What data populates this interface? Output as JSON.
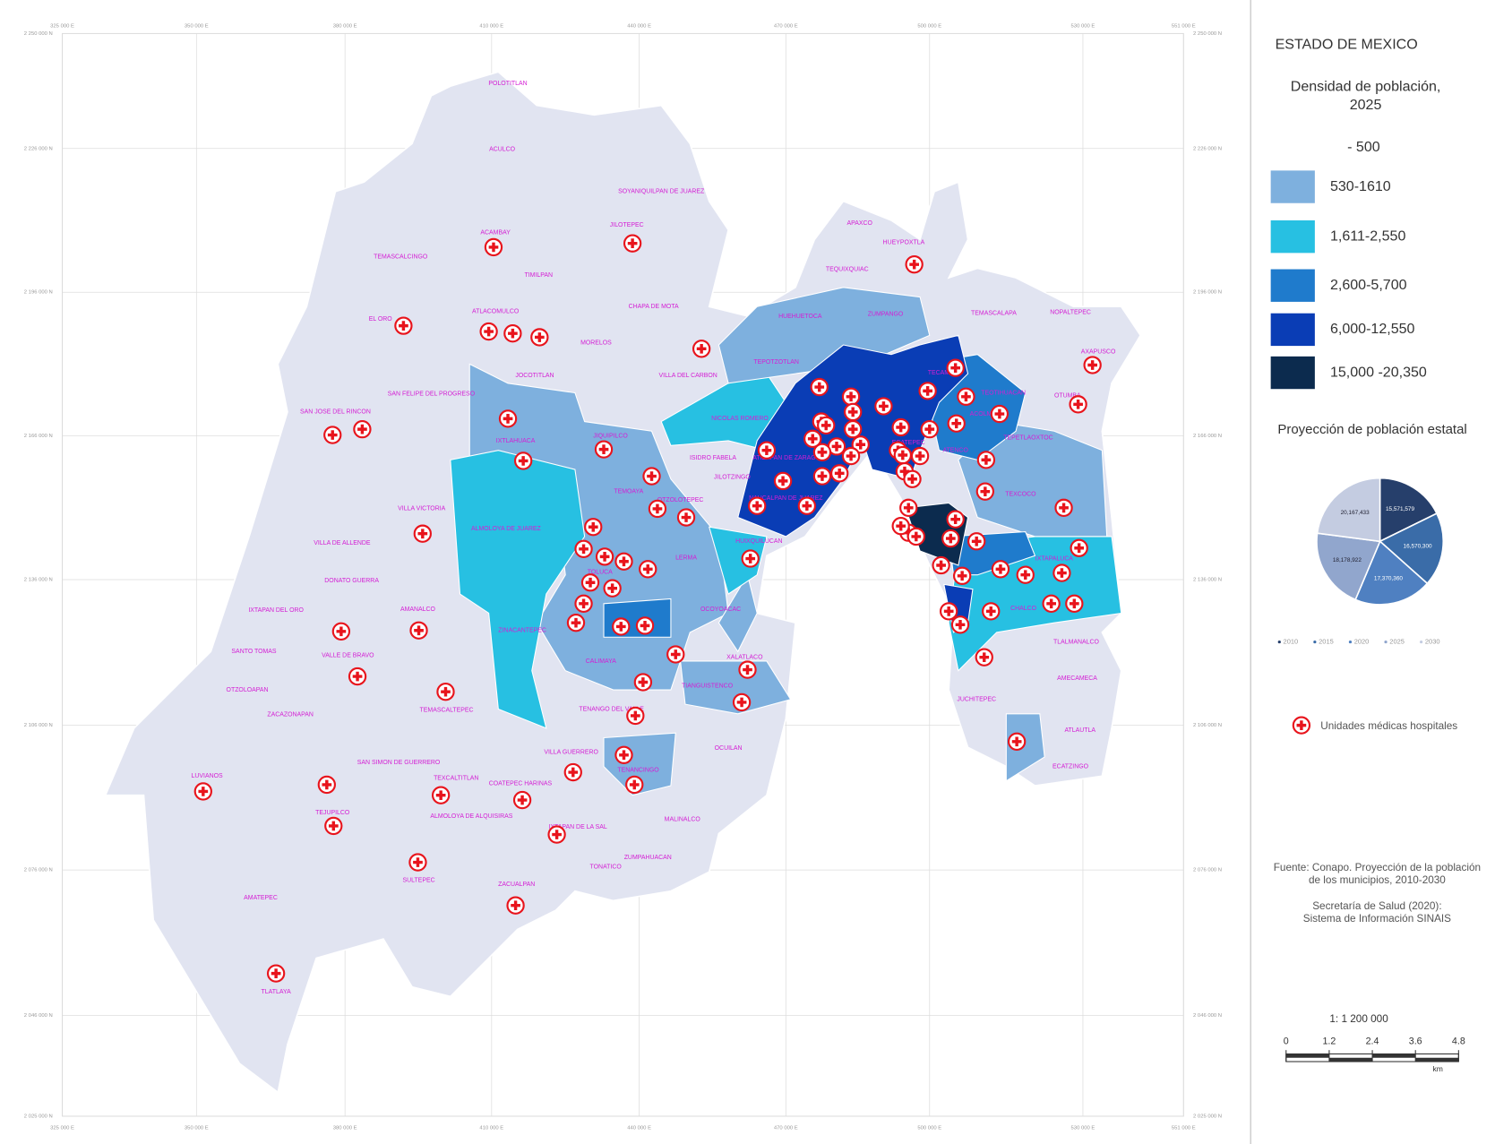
{
  "map": {
    "x_coords": [
      "325 000 E",
      "350 000 E",
      "380 000 E",
      "410 000 E",
      "440 000 E",
      "470 000 E",
      "500 000 E",
      "530 000 E",
      "551 000 E"
    ],
    "y_coords": [
      "2 250 000 N",
      "2 226 000 N",
      "2 196 000 N",
      "2 166 000 N",
      "2 136 000 N",
      "2 106 000 N",
      "2 076 000 N",
      "2 046 000 N",
      "2 025 000 N"
    ],
    "municipalities": [
      "POLOTITLAN",
      "ACULCO",
      "SOYANIQUILPAN DE JUAREZ",
      "ACAMBAY",
      "JILOTEPEC",
      "TEMASCALCINGO",
      "TIMILPAN",
      "CHAPA DE MOTA",
      "EL ORO",
      "ATLACOMULCO",
      "MORELOS",
      "VILLA DEL CARBON",
      "JOCOTITLAN",
      "SAN JOSE DEL RINCON",
      "SAN FELIPE DEL PROGRESO",
      "IXTLAHUACA",
      "JIQUIPILCO",
      "NICOLAS ROMERO",
      "ISIDRO FABELA",
      "JILOTZINGO",
      "TEMOAYA",
      "OTZOLOTEPEC",
      "VILLA VICTORIA",
      "VILLA DE ALLENDE",
      "ALMOLOYA DE JUAREZ",
      "LERMA",
      "DONATO GUERRA",
      "TOLUCA",
      "HUIXQUILUCAN",
      "OCOYOACAC",
      "IXTAPAN DEL ORO",
      "AMANALCO",
      "ZINACANTEPEC",
      "SANTO TOMAS",
      "VALLE DE BRAVO",
      "CALIMAYA",
      "XALATLACO",
      "OTZOLOAPAN",
      "TEMASCALTEPEC",
      "TIANGUISTENCO",
      "ZACAZONAPAN",
      "TENANGO DEL VALLE",
      "VILLA GUERRERO",
      "SAN SIMON DE GUERRERO",
      "OCUILAN",
      "TENANCINGO",
      "LUVIANOS",
      "IXTAPAN DE LA SAL",
      "TEXCALTITLAN",
      "COATEPEC HARINAS",
      "TEJUPILCO",
      "MALINALCO",
      "ALMOLOYA DE ALQUISIRAS",
      "ZUMPAHUACAN",
      "TONATICO",
      "SULTEPEC",
      "ZACUALPAN",
      "AMATEPEC",
      "TLATLAYA",
      "APAXCO",
      "HUEYPOXTLA",
      "TEQUIXQUIAC",
      "HUEHUETOCA",
      "ZUMPANGO",
      "TEPOTZOTLAN",
      "TEMASCALAPA",
      "NOPALTEPEC",
      "AXAPUSCO",
      "OTUMBA",
      "TECAMAC",
      "TEOTIHUACAN",
      "ACOLMAN",
      "TEPETLAOXTOC",
      "ATENCO",
      "TEXCOCO",
      "IXTAPALUCA",
      "CHALCO",
      "TLALMANALCO",
      "AMECAMECA",
      "JUCHITEPEC",
      "ATLAUTLA",
      "ECATZINGO",
      "NAUCALPAN DE JUAREZ",
      "ECATEPEC",
      "ATIZAPAN DE ZARAGOZA"
    ]
  },
  "legend": {
    "title": "ESTADO DE MEXICO",
    "subtitle_lines": [
      "Densidad de población,",
      "2025"
    ],
    "first_class": "- 500",
    "classes": [
      {
        "label": "530-1610",
        "color": "#7eb0de"
      },
      {
        "label": "1,611-2,550",
        "color": "#27c0e2"
      },
      {
        "label": "2,600-5,700",
        "color": "#1f7bcc"
      },
      {
        "label": "6,000-12,550",
        "color": "#0a3db5"
      },
      {
        "label": "15,000 -20,350",
        "color": "#0c2b4e"
      }
    ]
  },
  "pie": {
    "title": "Proyección de población estatal",
    "categories": [
      "2010",
      "2015",
      "2020",
      "2025",
      "2030"
    ],
    "values": [
      15571579,
      16570300,
      17370360,
      18178922,
      20167433
    ],
    "value_labels": [
      "15,571,579",
      "16,570,300",
      "17,370,360",
      "18,178,922",
      "20,167,433"
    ],
    "colors": [
      "#263f6b",
      "#3a6ca8",
      "#4f80c1",
      "#91a6cd",
      "#c4cce1"
    ]
  },
  "hospitals_label": "Unidades médicas hospitales",
  "source": [
    "Fuente: Conapo. Proyección de la población",
    "de los municipios, 2010-2030",
    "Secretaría de Salud (2020):",
    "Sistema de Información SINAIS"
  ],
  "scale": {
    "ratio": "1: 1 200 000",
    "ticks": [
      0,
      1.2,
      2.4,
      3.6,
      4.8
    ],
    "unit": "km"
  }
}
